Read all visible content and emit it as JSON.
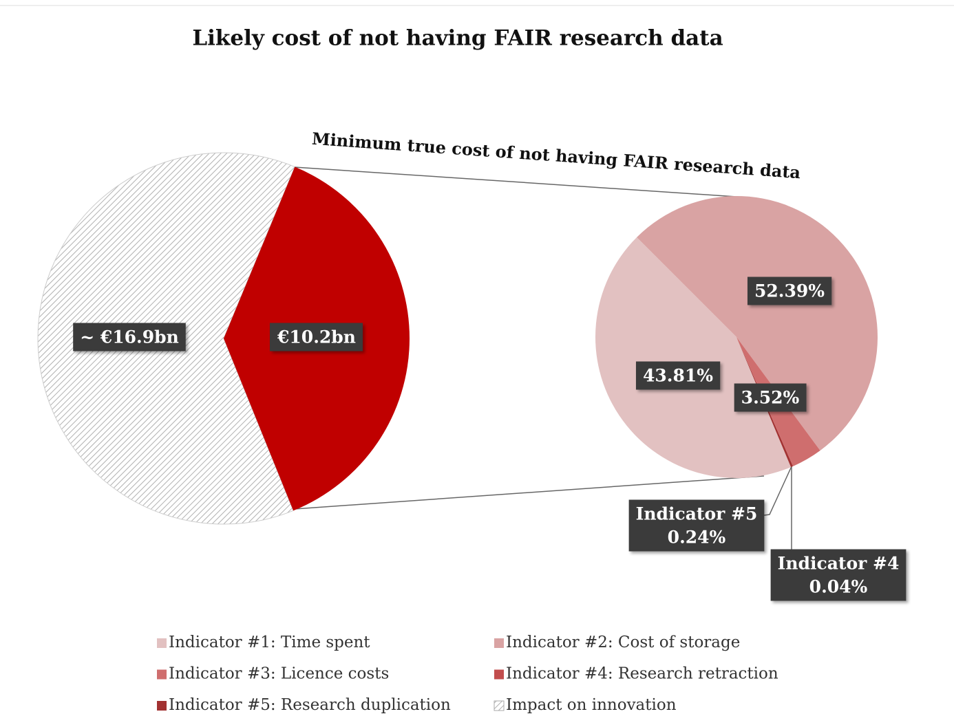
{
  "chart_data": [
    {
      "type": "pie",
      "title": "Likely cost of not having FAIR research data",
      "categories": [
        "Impact on innovation",
        null
      ],
      "values": [
        16.9,
        10.2
      ],
      "value_labels": [
        "~ €16.9bn",
        "€10.2bn"
      ],
      "colors": [
        "#ffffff",
        "#c00000"
      ],
      "hatch": [
        true,
        false
      ]
    },
    {
      "type": "pie",
      "title": "Minimum true cost of not having FAIR research data",
      "categories": [
        "Indicator #1: Time spent",
        "Indicator #2: Cost of storage",
        "Indicator #3: Licence costs",
        "Indicator #4: Research retraction",
        "Indicator #5: Research duplication"
      ],
      "values": [
        43.81,
        52.39,
        3.52,
        0.04,
        0.24
      ],
      "value_labels": [
        "43.81%",
        "52.39%",
        "3.52%",
        "0.04%",
        "0.24%"
      ],
      "data_label_prefixes": [
        null,
        null,
        null,
        "Indicator #4",
        "Indicator #5"
      ],
      "colors": [
        "#e2c1c1",
        "#d9a3a3",
        "#cf6e6e",
        "#c24d4d",
        "#a23232"
      ],
      "hatch": [
        false,
        false,
        false,
        false,
        false
      ]
    }
  ]
}
